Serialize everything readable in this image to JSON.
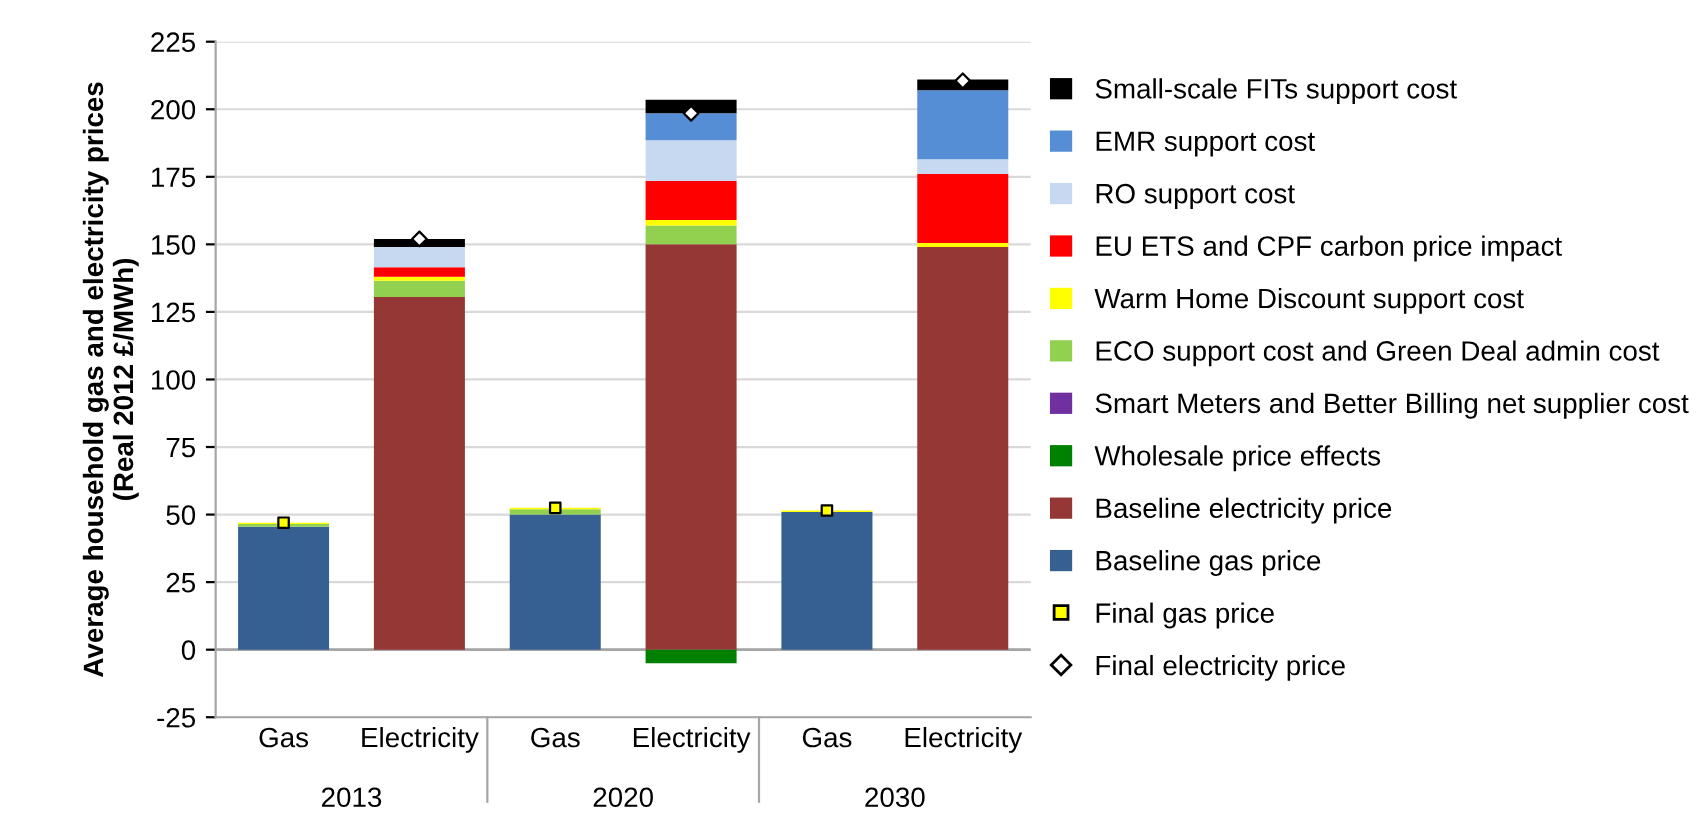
{
  "chart_data": {
    "type": "bar",
    "stacked": true,
    "ylabel": "Average household gas and electricity prices\n(Real 2012 £/MWh)",
    "categories": [
      "Gas",
      "Electricity",
      "Gas",
      "Electricity",
      "Gas",
      "Electricity"
    ],
    "annotations": [
      "2013",
      "2020",
      "2030"
    ],
    "ylim": [
      -25,
      225
    ],
    "yticks": [
      -25,
      0,
      25,
      50,
      75,
      100,
      125,
      150,
      175,
      200,
      225
    ],
    "grid": "y",
    "legend": "right",
    "series": [
      {
        "name": "Baseline gas price",
        "color": "#376092",
        "values": [
          45.5,
          null,
          50,
          null,
          51,
          null
        ]
      },
      {
        "name": "Baseline electricity price",
        "color": "#953735",
        "values": [
          null,
          130.5,
          null,
          150,
          null,
          149
        ]
      },
      {
        "name": "Wholesale price effects",
        "color": "#008000",
        "values": [
          null,
          null,
          null,
          -5,
          null,
          null
        ]
      },
      {
        "name": "Smart Meters and Better Billing net supplier cost",
        "color": "#7030a0",
        "values": [
          null,
          null,
          null,
          null,
          null,
          null
        ]
      },
      {
        "name": "ECO support cost and Green Deal admin cost",
        "color": "#92d050",
        "values": [
          1,
          6,
          2,
          7,
          null,
          null
        ]
      },
      {
        "name": "Warm Home Discount support cost",
        "color": "#ffff00",
        "values": [
          0.5,
          1.5,
          0.5,
          2,
          0.5,
          1.5
        ]
      },
      {
        "name": "EU ETS and CPF carbon price impact",
        "color": "#ff0000",
        "values": [
          null,
          3.5,
          null,
          14.5,
          null,
          25.5
        ]
      },
      {
        "name": "RO support cost",
        "color": "#c6d9f1",
        "values": [
          null,
          7.5,
          null,
          15,
          null,
          5.5
        ]
      },
      {
        "name": "EMR support cost",
        "color": "#558ed5",
        "values": [
          null,
          null,
          null,
          10,
          null,
          25.5
        ]
      },
      {
        "name": "Small-scale FITs support cost",
        "color": "#000000",
        "values": [
          null,
          3,
          null,
          5,
          null,
          4
        ]
      },
      {
        "name": "Final gas price",
        "type": "scatter",
        "marker": "square",
        "color": "#ffff00",
        "values": [
          47,
          null,
          52.5,
          null,
          51.5,
          null
        ]
      },
      {
        "name": "Final electricity price",
        "type": "scatter",
        "marker": "diamond",
        "color": "#ffffff",
        "values": [
          null,
          152,
          null,
          198.5,
          null,
          210.5
        ]
      }
    ]
  }
}
